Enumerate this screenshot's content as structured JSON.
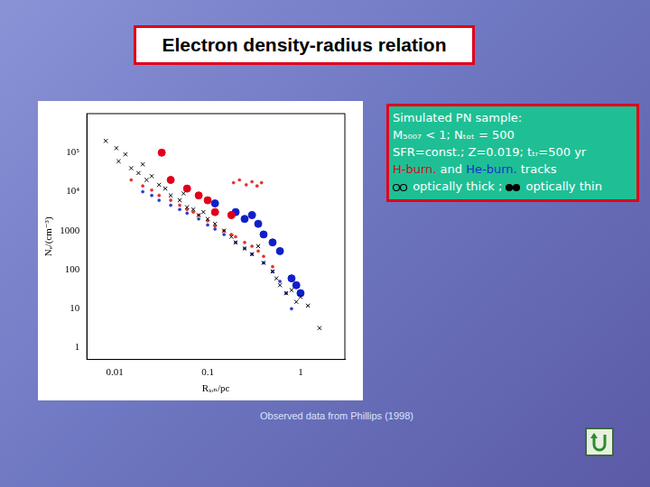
{
  "slide": {
    "title": "Electron density-radius relation",
    "info_box": [
      [
        {
          "text": "Simulated PN sample:"
        }
      ],
      [
        {
          "text": "M₅₀₀₇ < 1; Nₜₒₜ = 500"
        }
      ],
      [
        {
          "text": "SFR=const.; Z=0.019; tₜᵣ=500 yr"
        }
      ],
      [
        {
          "text": "H-burn.",
          "color": "#e0001a"
        },
        {
          "text": " and "
        },
        {
          "text": "He-burn.",
          "color": "#1a2fd0"
        },
        {
          "text": " tracks"
        }
      ],
      [
        {
          "marker": "open"
        },
        {
          "text": " optically thick ; "
        },
        {
          "marker": "filled"
        },
        {
          "text": " optically thin"
        }
      ]
    ],
    "footer": "Observed data from Phillips (1998)"
  },
  "chart_data": {
    "type": "scatter",
    "x_label": "Rᵢₒₙ/pc",
    "y_label": "Nₑ/(cm⁻³)",
    "log": true,
    "grid": false,
    "xlim": [
      0.005,
      3
    ],
    "xticks": [
      0.01,
      0.1,
      1
    ],
    "ylim": [
      0.5,
      1000000
    ],
    "yticks": [
      1,
      10,
      100,
      1000,
      {
        "value": 10000,
        "label": "10⁴"
      },
      {
        "value": 100000,
        "label": "10⁵"
      }
    ],
    "series": [
      {
        "color": "#000000",
        "marker": "cross",
        "x": [
          0.008,
          0.0104,
          0.011,
          0.013,
          0.015,
          0.018,
          0.02,
          0.022,
          0.025,
          0.03,
          0.035,
          0.04,
          0.05,
          0.055,
          0.06,
          0.07,
          0.08,
          0.09,
          0.1,
          0.12,
          0.15,
          0.18,
          0.2,
          0.25,
          0.3,
          0.35,
          0.4,
          0.5,
          0.55,
          0.6,
          0.7,
          0.8,
          0.9,
          1.0,
          1.2,
          1.6
        ],
        "y": [
          200000,
          130000,
          60000,
          90000,
          40000,
          30000,
          50000,
          20000,
          25000,
          15000,
          12000,
          8000,
          6000,
          9000,
          4000,
          3500,
          2500,
          3000,
          2000,
          1500,
          1000,
          700,
          500,
          350,
          250,
          400,
          150,
          90,
          60,
          40,
          25,
          30,
          15,
          20,
          12,
          3.2
        ]
      },
      {
        "color": "#e0302a",
        "marker": "dot",
        "x": [
          0.015,
          0.02,
          0.025,
          0.03,
          0.04,
          0.05,
          0.06,
          0.07,
          0.08,
          0.1,
          0.12,
          0.15,
          0.18,
          0.2,
          0.25,
          0.3,
          0.35,
          0.4,
          0.5,
          0.19,
          0.22,
          0.26,
          0.3,
          0.34,
          0.38
        ],
        "y": [
          20000,
          14000,
          11000,
          8000,
          6000,
          4500,
          3500,
          3000,
          2500,
          1800,
          1300,
          1000,
          800,
          700,
          500,
          400,
          300,
          220,
          120,
          17000,
          20000,
          15000,
          18000,
          14000,
          17000
        ]
      },
      {
        "color": "#2a3ad0",
        "marker": "dot",
        "x": [
          0.02,
          0.025,
          0.03,
          0.04,
          0.05,
          0.06,
          0.08,
          0.1,
          0.12,
          0.15,
          0.2,
          0.25,
          0.3,
          0.4,
          0.5,
          0.6,
          0.7,
          0.8
        ],
        "y": [
          10000,
          8000,
          6000,
          4500,
          3500,
          2800,
          2000,
          1400,
          1100,
          800,
          500,
          350,
          250,
          150,
          90,
          50,
          25,
          10
        ]
      },
      {
        "color": "#e0001a",
        "marker": "disc",
        "x": [
          0.032,
          0.04,
          0.06,
          0.08,
          0.1,
          0.12,
          0.18
        ],
        "y": [
          100000,
          20000,
          12000,
          8000,
          6000,
          3000,
          2500
        ]
      },
      {
        "color": "#1020c8",
        "marker": "disc",
        "x": [
          0.12,
          0.2,
          0.25,
          0.3,
          0.35,
          0.4,
          0.5,
          0.6,
          0.8,
          0.9,
          1.0
        ],
        "y": [
          5000,
          3000,
          2000,
          2500,
          1500,
          800,
          500,
          300,
          60,
          40,
          25
        ]
      }
    ]
  }
}
